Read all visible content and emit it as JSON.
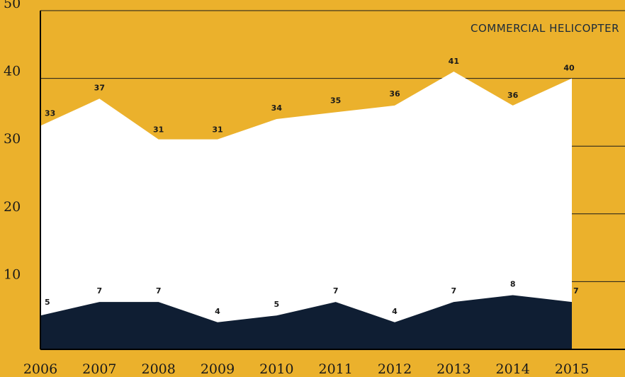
{
  "chart_data": {
    "type": "area",
    "title": "COMMERCIAL HELICOPTER",
    "x": [
      "2006",
      "2007",
      "2008",
      "2009",
      "2010",
      "2011",
      "2012",
      "2013",
      "2014",
      "2015"
    ],
    "series": [
      {
        "values": [
          33,
          37,
          31,
          31,
          34,
          35,
          36,
          41,
          36,
          40
        ],
        "color": "#FFFFFF"
      },
      {
        "values": [
          5,
          7,
          7,
          4,
          5,
          7,
          4,
          7,
          8,
          7
        ],
        "color": "#0F1E33"
      }
    ],
    "yticks": [
      "10",
      "20",
      "30",
      "40",
      "50"
    ],
    "ylim": [
      0,
      50
    ],
    "grid": true,
    "colors": {
      "background": "#EBB12C",
      "gridline": "#1a1a1a",
      "axis": "#000000"
    }
  }
}
